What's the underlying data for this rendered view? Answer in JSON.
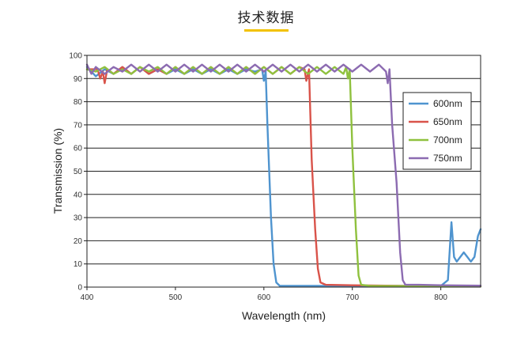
{
  "header": {
    "title": "技术数据",
    "accent_color": "#f2c200"
  },
  "chart_data": {
    "type": "line",
    "title": "",
    "xlabel": "Wavelength (nm)",
    "ylabel": "Transmission (%)",
    "xlim": [
      400,
      845
    ],
    "ylim": [
      0,
      100
    ],
    "xticks": [
      400,
      500,
      600,
      700,
      800
    ],
    "yticks": [
      0,
      10,
      20,
      30,
      40,
      50,
      60,
      70,
      80,
      90,
      100
    ],
    "grid": "horizontal",
    "legend_position": "right",
    "series": [
      {
        "name": "600nm",
        "color": "#4f94cf",
        "points": [
          [
            400,
            95
          ],
          [
            410,
            91
          ],
          [
            420,
            94
          ],
          [
            430,
            92
          ],
          [
            440,
            95
          ],
          [
            450,
            92
          ],
          [
            460,
            95
          ],
          [
            470,
            92
          ],
          [
            480,
            94
          ],
          [
            490,
            92
          ],
          [
            500,
            94
          ],
          [
            510,
            92
          ],
          [
            520,
            94
          ],
          [
            530,
            92
          ],
          [
            540,
            94
          ],
          [
            550,
            92
          ],
          [
            560,
            94
          ],
          [
            570,
            92
          ],
          [
            580,
            94
          ],
          [
            590,
            93
          ],
          [
            598,
            94
          ],
          [
            600,
            89
          ],
          [
            602,
            93
          ],
          [
            604,
            70
          ],
          [
            608,
            30
          ],
          [
            611,
            10
          ],
          [
            614,
            2
          ],
          [
            618,
            0.5
          ],
          [
            640,
            0.5
          ],
          [
            700,
            0.5
          ],
          [
            760,
            0.5
          ],
          [
            800,
            0.5
          ],
          [
            808,
            3
          ],
          [
            812,
            28
          ],
          [
            815,
            13
          ],
          [
            818,
            11
          ],
          [
            822,
            13
          ],
          [
            826,
            15
          ],
          [
            830,
            13
          ],
          [
            834,
            11
          ],
          [
            838,
            13
          ],
          [
            842,
            22
          ],
          [
            845,
            25
          ]
        ]
      },
      {
        "name": "650nm",
        "color": "#d9534a",
        "points": [
          [
            400,
            94
          ],
          [
            412,
            94
          ],
          [
            415,
            90
          ],
          [
            418,
            93
          ],
          [
            420,
            88
          ],
          [
            423,
            94
          ],
          [
            430,
            92
          ],
          [
            440,
            95
          ],
          [
            450,
            92
          ],
          [
            460,
            95
          ],
          [
            470,
            92
          ],
          [
            480,
            94
          ],
          [
            490,
            92
          ],
          [
            500,
            95
          ],
          [
            510,
            92
          ],
          [
            520,
            95
          ],
          [
            530,
            92
          ],
          [
            540,
            95
          ],
          [
            550,
            92
          ],
          [
            560,
            95
          ],
          [
            570,
            92
          ],
          [
            580,
            95
          ],
          [
            590,
            92
          ],
          [
            600,
            95
          ],
          [
            610,
            92
          ],
          [
            620,
            95
          ],
          [
            630,
            92
          ],
          [
            640,
            95
          ],
          [
            646,
            94
          ],
          [
            648,
            89
          ],
          [
            651,
            94
          ],
          [
            654,
            55
          ],
          [
            658,
            25
          ],
          [
            661,
            8
          ],
          [
            664,
            2
          ],
          [
            670,
            1
          ],
          [
            700,
            0.8
          ],
          [
            760,
            0.5
          ],
          [
            845,
            0.3
          ]
        ]
      },
      {
        "name": "700nm",
        "color": "#8fc13e",
        "points": [
          [
            400,
            94
          ],
          [
            410,
            93
          ],
          [
            420,
            95
          ],
          [
            430,
            92
          ],
          [
            440,
            94
          ],
          [
            450,
            92
          ],
          [
            460,
            95
          ],
          [
            470,
            93
          ],
          [
            480,
            95
          ],
          [
            490,
            92
          ],
          [
            500,
            95
          ],
          [
            510,
            92
          ],
          [
            520,
            95
          ],
          [
            530,
            92
          ],
          [
            540,
            95
          ],
          [
            550,
            92
          ],
          [
            560,
            95
          ],
          [
            570,
            92
          ],
          [
            580,
            95
          ],
          [
            590,
            92
          ],
          [
            600,
            95
          ],
          [
            610,
            92
          ],
          [
            620,
            95
          ],
          [
            630,
            92
          ],
          [
            640,
            95
          ],
          [
            650,
            92
          ],
          [
            660,
            95
          ],
          [
            670,
            92
          ],
          [
            680,
            95
          ],
          [
            690,
            92
          ],
          [
            693,
            95
          ],
          [
            695,
            90
          ],
          [
            697,
            94
          ],
          [
            700,
            60
          ],
          [
            704,
            25
          ],
          [
            707,
            5
          ],
          [
            710,
            1
          ],
          [
            720,
            0.5
          ],
          [
            845,
            0.3
          ]
        ]
      },
      {
        "name": "750nm",
        "color": "#8c6bb1",
        "points": [
          [
            400,
            96
          ],
          [
            405,
            92
          ],
          [
            410,
            95
          ],
          [
            420,
            92
          ],
          [
            430,
            95
          ],
          [
            440,
            93
          ],
          [
            450,
            96
          ],
          [
            460,
            93
          ],
          [
            470,
            96
          ],
          [
            480,
            93
          ],
          [
            490,
            96
          ],
          [
            500,
            93
          ],
          [
            510,
            96
          ],
          [
            520,
            93
          ],
          [
            530,
            96
          ],
          [
            540,
            93
          ],
          [
            550,
            96
          ],
          [
            560,
            93
          ],
          [
            570,
            96
          ],
          [
            580,
            93
          ],
          [
            590,
            96
          ],
          [
            600,
            93
          ],
          [
            610,
            96
          ],
          [
            620,
            93
          ],
          [
            630,
            96
          ],
          [
            640,
            93
          ],
          [
            650,
            96
          ],
          [
            660,
            93
          ],
          [
            670,
            96
          ],
          [
            680,
            93
          ],
          [
            690,
            96
          ],
          [
            700,
            93
          ],
          [
            710,
            96
          ],
          [
            720,
            93
          ],
          [
            730,
            96
          ],
          [
            738,
            93
          ],
          [
            740,
            88
          ],
          [
            742,
            94
          ],
          [
            745,
            70
          ],
          [
            750,
            45
          ],
          [
            754,
            15
          ],
          [
            757,
            3
          ],
          [
            760,
            1
          ],
          [
            775,
            1
          ],
          [
            800,
            0.8
          ],
          [
            845,
            0.6
          ]
        ]
      }
    ]
  }
}
